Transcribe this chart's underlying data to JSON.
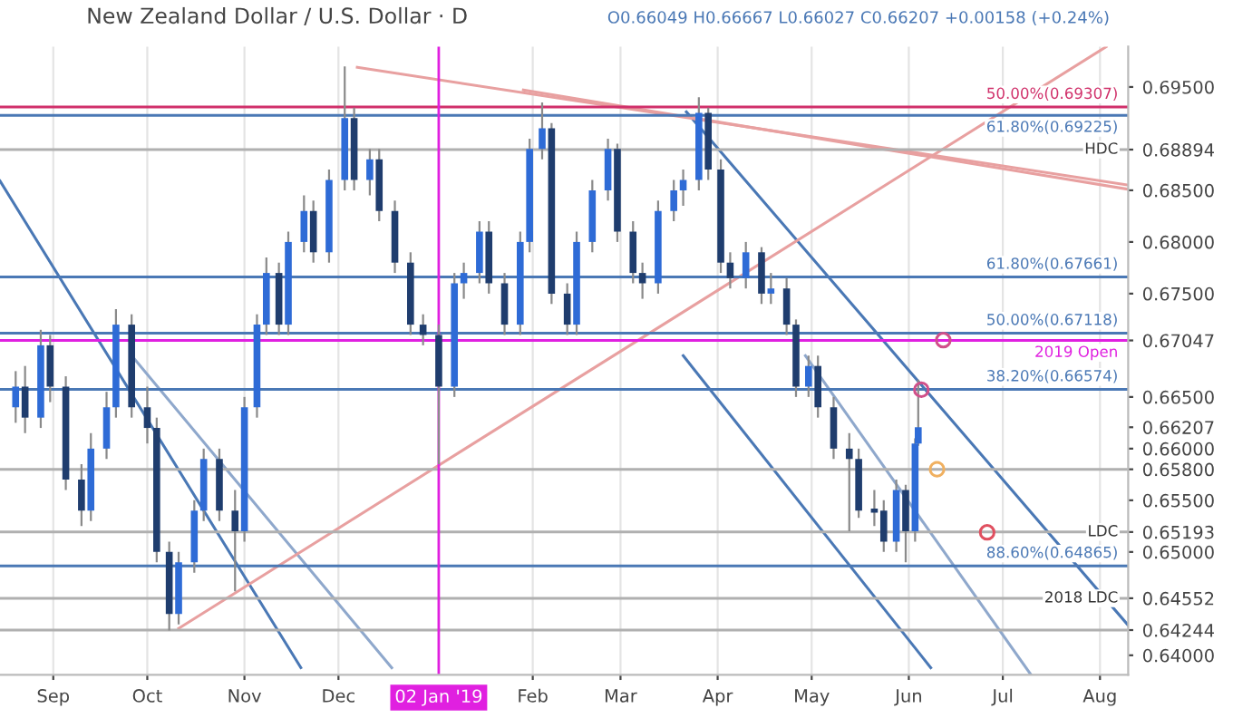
{
  "chart_data": {
    "type": "candlestick",
    "title": "New Zealand Dollar / U.S. Dollar · D",
    "annotations": [
      "O0.66049 H0.66667 L0.66027 C0.66207 +0.00158 (+0.24%)"
    ],
    "x": [
      "2018-08-20",
      "2018-08-23",
      "2018-08-28",
      "2018-08-31",
      "2018-09-05",
      "2018-09-10",
      "2018-09-13",
      "2018-09-18",
      "2018-09-21",
      "2018-09-26",
      "2018-10-01",
      "2018-10-04",
      "2018-10-08",
      "2018-10-11",
      "2018-10-16",
      "2018-10-19",
      "2018-10-24",
      "2018-10-29",
      "2018-11-01",
      "2018-11-05",
      "2018-11-08",
      "2018-11-12",
      "2018-11-15",
      "2018-11-20",
      "2018-11-23",
      "2018-11-28",
      "2018-12-03",
      "2018-12-06",
      "2018-12-11",
      "2018-12-14",
      "2018-12-19",
      "2018-12-24",
      "2018-12-28",
      "2019-01-02",
      "2019-01-07",
      "2019-01-10",
      "2019-01-15",
      "2019-01-18",
      "2019-01-23",
      "2019-01-28",
      "2019-01-31",
      "2019-02-04",
      "2019-02-07",
      "2019-02-12",
      "2019-02-15",
      "2019-02-20",
      "2019-02-25",
      "2019-02-28",
      "2019-03-05",
      "2019-03-08",
      "2019-03-13",
      "2019-03-18",
      "2019-03-21",
      "2019-03-26",
      "2019-03-29",
      "2019-04-02",
      "2019-04-05",
      "2019-04-10",
      "2019-04-15",
      "2019-04-18",
      "2019-04-23",
      "2019-04-26",
      "2019-04-30",
      "2019-05-03",
      "2019-05-08",
      "2019-05-13",
      "2019-05-16",
      "2019-05-21",
      "2019-05-24",
      "2019-05-28",
      "2019-05-31",
      "2019-06-03",
      "2019-06-04"
    ],
    "ohlc": [
      [
        0.664,
        0.6675,
        0.6625,
        0.666
      ],
      [
        0.666,
        0.668,
        0.6615,
        0.663
      ],
      [
        0.663,
        0.6715,
        0.662,
        0.67
      ],
      [
        0.67,
        0.671,
        0.6645,
        0.666
      ],
      [
        0.666,
        0.667,
        0.656,
        0.657
      ],
      [
        0.657,
        0.6585,
        0.6525,
        0.654
      ],
      [
        0.654,
        0.6615,
        0.653,
        0.66
      ],
      [
        0.66,
        0.6655,
        0.659,
        0.664
      ],
      [
        0.664,
        0.6735,
        0.663,
        0.672
      ],
      [
        0.672,
        0.673,
        0.663,
        0.664
      ],
      [
        0.664,
        0.666,
        0.6605,
        0.662
      ],
      [
        0.662,
        0.663,
        0.649,
        0.65
      ],
      [
        0.65,
        0.651,
        0.6424,
        0.644
      ],
      [
        0.644,
        0.65,
        0.643,
        0.649
      ],
      [
        0.649,
        0.655,
        0.648,
        0.654
      ],
      [
        0.654,
        0.66,
        0.653,
        0.659
      ],
      [
        0.659,
        0.66,
        0.653,
        0.654
      ],
      [
        0.654,
        0.656,
        0.6462,
        0.652
      ],
      [
        0.652,
        0.665,
        0.651,
        0.664
      ],
      [
        0.664,
        0.673,
        0.663,
        0.672
      ],
      [
        0.672,
        0.6785,
        0.671,
        0.677
      ],
      [
        0.677,
        0.678,
        0.671,
        0.672
      ],
      [
        0.672,
        0.681,
        0.671,
        0.68
      ],
      [
        0.68,
        0.6845,
        0.679,
        0.683
      ],
      [
        0.683,
        0.684,
        0.678,
        0.679
      ],
      [
        0.679,
        0.687,
        0.678,
        0.686
      ],
      [
        0.686,
        0.697,
        0.685,
        0.692
      ],
      [
        0.692,
        0.693,
        0.685,
        0.686
      ],
      [
        0.686,
        0.689,
        0.6845,
        0.688
      ],
      [
        0.688,
        0.689,
        0.682,
        0.683
      ],
      [
        0.683,
        0.684,
        0.677,
        0.678
      ],
      [
        0.678,
        0.679,
        0.671,
        0.672
      ],
      [
        0.672,
        0.673,
        0.67,
        0.671
      ],
      [
        0.671,
        0.672,
        0.6585,
        0.666
      ],
      [
        0.666,
        0.677,
        0.665,
        0.676
      ],
      [
        0.676,
        0.678,
        0.6745,
        0.677
      ],
      [
        0.677,
        0.682,
        0.676,
        0.681
      ],
      [
        0.681,
        0.682,
        0.675,
        0.676
      ],
      [
        0.676,
        0.677,
        0.671,
        0.672
      ],
      [
        0.672,
        0.681,
        0.671,
        0.68
      ],
      [
        0.68,
        0.69,
        0.679,
        0.689
      ],
      [
        0.689,
        0.6935,
        0.688,
        0.691
      ],
      [
        0.691,
        0.6915,
        0.674,
        0.675
      ],
      [
        0.675,
        0.676,
        0.671,
        0.672
      ],
      [
        0.672,
        0.681,
        0.671,
        0.68
      ],
      [
        0.68,
        0.686,
        0.679,
        0.685
      ],
      [
        0.685,
        0.69,
        0.684,
        0.689
      ],
      [
        0.689,
        0.6895,
        0.68,
        0.681
      ],
      [
        0.681,
        0.682,
        0.676,
        0.677
      ],
      [
        0.677,
        0.678,
        0.6745,
        0.676
      ],
      [
        0.676,
        0.684,
        0.675,
        0.683
      ],
      [
        0.683,
        0.686,
        0.682,
        0.685
      ],
      [
        0.685,
        0.687,
        0.6835,
        0.686
      ],
      [
        0.686,
        0.694,
        0.685,
        0.6925
      ],
      [
        0.6925,
        0.693,
        0.686,
        0.687
      ],
      [
        0.687,
        0.688,
        0.677,
        0.678
      ],
      [
        0.678,
        0.679,
        0.6755,
        0.6765
      ],
      [
        0.6765,
        0.68,
        0.6755,
        0.679
      ],
      [
        0.679,
        0.6795,
        0.674,
        0.675
      ],
      [
        0.675,
        0.677,
        0.674,
        0.6755
      ],
      [
        0.6755,
        0.6765,
        0.671,
        0.672
      ],
      [
        0.672,
        0.6725,
        0.665,
        0.666
      ],
      [
        0.666,
        0.669,
        0.665,
        0.668
      ],
      [
        0.668,
        0.669,
        0.663,
        0.664
      ],
      [
        0.664,
        0.665,
        0.659,
        0.66
      ],
      [
        0.66,
        0.6615,
        0.652,
        0.659
      ],
      [
        0.659,
        0.66,
        0.6533,
        0.654
      ],
      [
        0.6542,
        0.656,
        0.6525,
        0.6538
      ],
      [
        0.654,
        0.655,
        0.65,
        0.651
      ],
      [
        0.651,
        0.657,
        0.65,
        0.656
      ],
      [
        0.656,
        0.6565,
        0.649,
        0.652
      ],
      [
        0.652,
        0.661,
        0.651,
        0.6605
      ],
      [
        0.66049,
        0.66667,
        0.66027,
        0.66207
      ]
    ],
    "series": [
      {
        "type": "line",
        "color": "#4a78b5",
        "x": [
          "2018-08-15",
          "2018-11-19"
        ],
        "values": [
          0.6859,
          0.6388
        ]
      },
      {
        "type": "line",
        "color": "#8fa8cc",
        "x": [
          "2018-09-26",
          "2018-12-18"
        ],
        "values": [
          0.669,
          0.6388
        ]
      },
      {
        "type": "line",
        "color": "#4a78b5",
        "x": [
          "2019-03-22",
          "2019-08-10"
        ],
        "values": [
          0.6926,
          0.6429
        ]
      },
      {
        "type": "line",
        "color": "#8fa8cc",
        "x": [
          "2019-04-29",
          "2019-07-10"
        ],
        "values": [
          0.669,
          0.6381
        ]
      },
      {
        "type": "line",
        "color": "#4a78b5",
        "x": [
          "2019-03-21",
          "2019-06-08"
        ],
        "values": [
          0.669,
          0.6388
        ]
      },
      {
        "type": "line",
        "color": "#e8a0a0",
        "x": [
          "2018-12-07",
          "2019-08-10"
        ],
        "values": [
          0.6969,
          0.6855
        ]
      },
      {
        "type": "line",
        "color": "#e8a0a0",
        "x": [
          "2019-01-29",
          "2019-08-10"
        ],
        "values": [
          0.6947,
          0.6851
        ]
      },
      {
        "type": "line",
        "color": "#e8a0a0",
        "x": [
          "2018-10-11",
          "2019-08-03"
        ],
        "values": [
          0.6426,
          0.6989
        ]
      },
      {
        "type": "scatter",
        "marker": "circle",
        "color": "#d0508a",
        "x": [
          "2019-06-05",
          "2019-06-12"
        ],
        "values": [
          0.6657,
          0.6705
        ]
      },
      {
        "type": "scatter",
        "marker": "circle",
        "color": "#f0b060",
        "x": [
          "2019-06-10"
        ],
        "values": [
          0.658
        ]
      },
      {
        "type": "scatter",
        "marker": "circle",
        "color": "#e05060",
        "x": [
          "2019-06-26"
        ],
        "values": [
          0.6519
        ]
      }
    ],
    "ref_lines": [
      {
        "axis": "y",
        "value": 0.69307,
        "label": "50.00%(0.69307)",
        "color": "#d0306a"
      },
      {
        "axis": "y",
        "value": 0.69225,
        "label": "61.80%(0.69225)",
        "color": "#4a78b5"
      },
      {
        "axis": "y",
        "value": 0.68894,
        "label": "HDC",
        "color": "#b0b0b0"
      },
      {
        "axis": "y",
        "value": 0.67661,
        "label": "61.80%(0.67661)",
        "color": "#4a78b5"
      },
      {
        "axis": "y",
        "value": 0.67118,
        "label": "50.00%(0.67118)",
        "color": "#4a78b5"
      },
      {
        "axis": "y",
        "value": 0.67047,
        "label": "2019 Open",
        "color": "#e020e0"
      },
      {
        "axis": "y",
        "value": 0.66574,
        "label": "38.20%(0.66574)",
        "color": "#4a78b5"
      },
      {
        "axis": "y",
        "value": 0.658,
        "label": null,
        "color": "#b0b0b0"
      },
      {
        "axis": "y",
        "value": 0.65193,
        "label": "LDC",
        "color": "#b0b0b0"
      },
      {
        "axis": "y",
        "value": 0.64865,
        "label": "88.60%(0.64865)",
        "color": "#4a78b5"
      },
      {
        "axis": "y",
        "value": 0.64552,
        "label": "2018 LDC",
        "color": "#b0b0b0"
      },
      {
        "axis": "y",
        "value": 0.64244,
        "label": null,
        "color": "#b0b0b0"
      },
      {
        "axis": "x",
        "value": "2019-01-02",
        "label": "02 Jan '19",
        "color": "#e020e0"
      }
    ],
    "xlim": [
      "2018-08-15",
      "2019-08-10"
    ],
    "xticks": [
      {
        "value": "2018-09-01",
        "label": "Sep"
      },
      {
        "value": "2018-10-01",
        "label": "Oct"
      },
      {
        "value": "2018-11-01",
        "label": "Nov"
      },
      {
        "value": "2018-12-01",
        "label": "Dec"
      },
      {
        "value": "2019-02-01",
        "label": "Feb"
      },
      {
        "value": "2019-03-01",
        "label": "Mar"
      },
      {
        "value": "2019-04-01",
        "label": "Apr"
      },
      {
        "value": "2019-05-01",
        "label": "May"
      },
      {
        "value": "2019-06-01",
        "label": "Jun"
      },
      {
        "value": "2019-07-01",
        "label": "Jul"
      },
      {
        "value": "2019-08-01",
        "label": "Aug"
      }
    ],
    "ylim": [
      0.6381,
      0.6989
    ],
    "yticks": [
      {
        "value": 0.695,
        "label": "0.69500"
      },
      {
        "value": 0.68894,
        "label": "0.68894"
      },
      {
        "value": 0.685,
        "label": "0.68500"
      },
      {
        "value": 0.68,
        "label": "0.68000"
      },
      {
        "value": 0.675,
        "label": "0.67500"
      },
      {
        "value": 0.67047,
        "label": "0.67047"
      },
      {
        "value": 0.665,
        "label": "0.66500"
      },
      {
        "value": 0.66207,
        "label": "0.66207"
      },
      {
        "value": 0.66,
        "label": "0.66000"
      },
      {
        "value": 0.658,
        "label": "0.65800"
      },
      {
        "value": 0.655,
        "label": "0.65500"
      },
      {
        "value": 0.65193,
        "label": "0.65193"
      },
      {
        "value": 0.65,
        "label": "0.65000"
      },
      {
        "value": 0.64552,
        "label": "0.64552"
      },
      {
        "value": 0.64244,
        "label": "0.64244"
      },
      {
        "value": 0.64,
        "label": "0.64000"
      }
    ],
    "grid": "x"
  }
}
